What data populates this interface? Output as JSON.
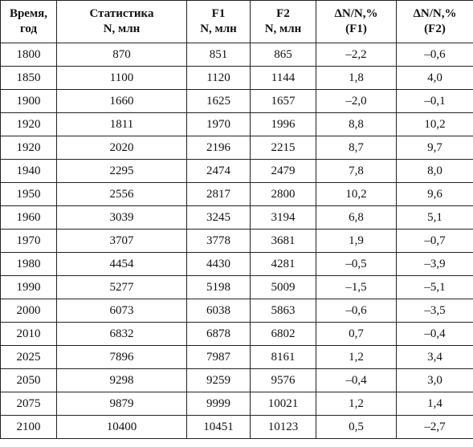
{
  "headers": [
    [
      "Время,",
      "год"
    ],
    [
      "Статистика",
      "N, млн"
    ],
    [
      "F1",
      "N, млн"
    ],
    [
      "F2",
      "N, млн"
    ],
    [
      "ΔN/N,%",
      "(F1)"
    ],
    [
      "ΔN/N,%",
      "(F2)"
    ]
  ],
  "rows": [
    [
      "1800",
      "870",
      "851",
      "865",
      "–2,2",
      "–0,6"
    ],
    [
      "1850",
      "1100",
      "1120",
      "1144",
      "1,8",
      "4,0"
    ],
    [
      "1900",
      "1660",
      "1625",
      "1657",
      "–2,0",
      "–0,1"
    ],
    [
      "1920",
      "1811",
      "1970",
      "1996",
      "8,8",
      "10,2"
    ],
    [
      "1920",
      "2020",
      "2196",
      "2215",
      "8,7",
      "9,7"
    ],
    [
      "1940",
      "2295",
      "2474",
      "2479",
      "7,8",
      "8,0"
    ],
    [
      "1950",
      "2556",
      "2817",
      "2800",
      "10,2",
      "9,6"
    ],
    [
      "1960",
      "3039",
      "3245",
      "3194",
      "6,8",
      "5,1"
    ],
    [
      "1970",
      "3707",
      "3778",
      "3681",
      "1,9",
      "–0,7"
    ],
    [
      "1980",
      "4454",
      "4430",
      "4281",
      "–0,5",
      "–3,9"
    ],
    [
      "1990",
      "5277",
      "5198",
      "5009",
      "–1,5",
      "–5,1"
    ],
    [
      "2000",
      "6073",
      "6038",
      "5863",
      "–0,6",
      "–3,5"
    ],
    [
      "2010",
      "6832",
      "6878",
      "6802",
      "0,7",
      "–0,4"
    ],
    [
      "2025",
      "7896",
      "7987",
      "8161",
      "1,2",
      "3,4"
    ],
    [
      "2050",
      "9298",
      "9259",
      "9576",
      "–0,4",
      "3,0"
    ],
    [
      "2075",
      "9879",
      "9999",
      "10021",
      "1,2",
      "1,4"
    ],
    [
      "2100",
      "10400",
      "10451",
      "10123",
      "0,5",
      "–2,7"
    ]
  ]
}
